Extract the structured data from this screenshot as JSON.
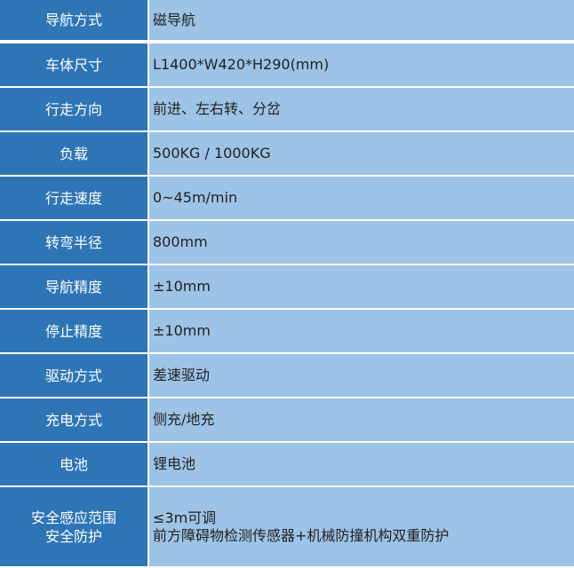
{
  "rows": [
    {
      "label": "导航方式",
      "value": "磁导航"
    },
    {
      "label": "车体尺寸",
      "value": "L1400*W420*H290(mm)"
    },
    {
      "label": "行走方向",
      "value": "前进、左右转、分岔"
    },
    {
      "label": "负载",
      "value": "500KG / 1000KG"
    },
    {
      "label": "行走速度",
      "value": "0~45m/min"
    },
    {
      "label": "转弯半径",
      "value": "800mm"
    },
    {
      "label": "导航精度",
      "value": "±10mm"
    },
    {
      "label": "停止精度",
      "value": "±10mm"
    },
    {
      "label": "驱动方式",
      "value": "差速驱动"
    },
    {
      "label": "充电方式",
      "value": "侧充/地充"
    },
    {
      "label": "电池",
      "value": "锂电池"
    }
  ],
  "last": {
    "label1": "安全感应范围",
    "label2": "安全防护",
    "value1": "≤3m可调",
    "value2": "前方障碍物检测传感器+机械防撞机构双重防护"
  },
  "colors": {
    "label_bg": "#2e75b6",
    "value_bg": "#9dc3e6"
  }
}
